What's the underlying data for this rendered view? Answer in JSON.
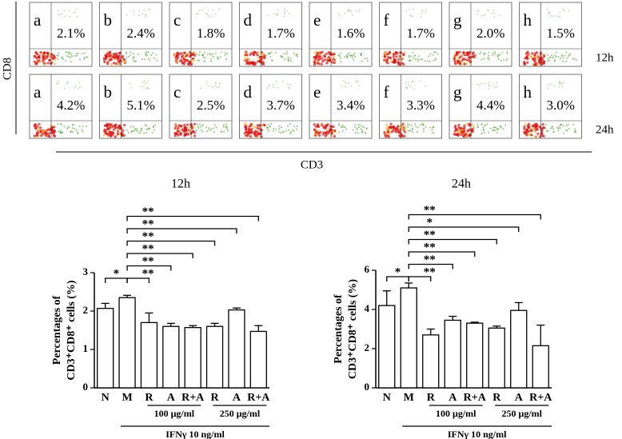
{
  "flow": {
    "ylabel": "CD8",
    "xlabel": "CD3",
    "rows": [
      {
        "label": "12h",
        "panels": [
          {
            "letter": "a",
            "value": "2.1%"
          },
          {
            "letter": "b",
            "value": "2.4%"
          },
          {
            "letter": "c",
            "value": "1.8%"
          },
          {
            "letter": "d",
            "value": "1.7%"
          },
          {
            "letter": "e",
            "value": "1.6%"
          },
          {
            "letter": "f",
            "value": "1.7%"
          },
          {
            "letter": "g",
            "value": "2.0%"
          },
          {
            "letter": "h",
            "value": "1.5%"
          }
        ]
      },
      {
        "label": "24h",
        "panels": [
          {
            "letter": "a",
            "value": "4.2%"
          },
          {
            "letter": "b",
            "value": "5.1%"
          },
          {
            "letter": "c",
            "value": "2.5%"
          },
          {
            "letter": "d",
            "value": "3.7%"
          },
          {
            "letter": "e",
            "value": "3.4%"
          },
          {
            "letter": "f",
            "value": "3.3%"
          },
          {
            "letter": "g",
            "value": "4.4%"
          },
          {
            "letter": "h",
            "value": "3.0%"
          }
        ]
      }
    ]
  },
  "chart_data": [
    {
      "type": "bar",
      "title": "12h",
      "ylabel": [
        "Percentages of",
        "CD3⁺CD8⁺ cells (%)"
      ],
      "categories": [
        "N",
        "M",
        "R",
        "A",
        "R+A",
        "R",
        "A",
        "R+A"
      ],
      "values": [
        2.07,
        2.35,
        1.7,
        1.6,
        1.57,
        1.6,
        2.03,
        1.47
      ],
      "errors": [
        0.13,
        0.06,
        0.25,
        0.08,
        0.05,
        0.08,
        0.05,
        0.15
      ],
      "color": "#ffffff",
      "ylim": [
        0,
        3
      ],
      "yticks": [
        0,
        1,
        2,
        3
      ],
      "brackets": [
        {
          "from": 0,
          "to": 1,
          "label": "*"
        },
        {
          "from": 1,
          "to": 2,
          "label": "**"
        },
        {
          "from": 1,
          "to": 3,
          "label": "**"
        },
        {
          "from": 1,
          "to": 4,
          "label": "**"
        },
        {
          "from": 1,
          "to": 5,
          "label": "**"
        },
        {
          "from": 1,
          "to": 6,
          "label": "**"
        },
        {
          "from": 1,
          "to": 7,
          "label": "**"
        }
      ],
      "groups": [
        {
          "label": "100 μg/ml",
          "from": 2,
          "to": 4
        },
        {
          "label": "250 μg/ml",
          "from": 5,
          "to": 7
        },
        {
          "label": "IFNγ 10 ng/ml",
          "from": 1,
          "to": 7
        }
      ]
    },
    {
      "type": "bar",
      "title": "24h",
      "ylabel": [
        "Percentages of",
        "CD3⁺CD8⁺ cells (%)"
      ],
      "categories": [
        "N",
        "M",
        "R",
        "A",
        "R+A",
        "R",
        "A",
        "R+A"
      ],
      "values": [
        4.2,
        5.1,
        2.7,
        3.45,
        3.3,
        3.05,
        3.95,
        2.15
      ],
      "errors": [
        0.75,
        0.25,
        0.3,
        0.2,
        0.05,
        0.1,
        0.4,
        1.05
      ],
      "color": "#ffffff",
      "ylim": [
        0,
        6
      ],
      "yticks": [
        0,
        2,
        4,
        6
      ],
      "brackets": [
        {
          "from": 0,
          "to": 1,
          "label": "*"
        },
        {
          "from": 1,
          "to": 2,
          "label": "**"
        },
        {
          "from": 1,
          "to": 3,
          "label": "**"
        },
        {
          "from": 1,
          "to": 4,
          "label": "**"
        },
        {
          "from": 1,
          "to": 5,
          "label": "**"
        },
        {
          "from": 1,
          "to": 6,
          "label": "*"
        },
        {
          "from": 1,
          "to": 7,
          "label": "**"
        }
      ],
      "groups": [
        {
          "label": "100 μg/ml",
          "from": 2,
          "to": 4
        },
        {
          "label": "250 μg/ml",
          "from": 5,
          "to": 7
        },
        {
          "label": "IFNγ 10 ng/ml",
          "from": 1,
          "to": 7
        }
      ]
    }
  ]
}
